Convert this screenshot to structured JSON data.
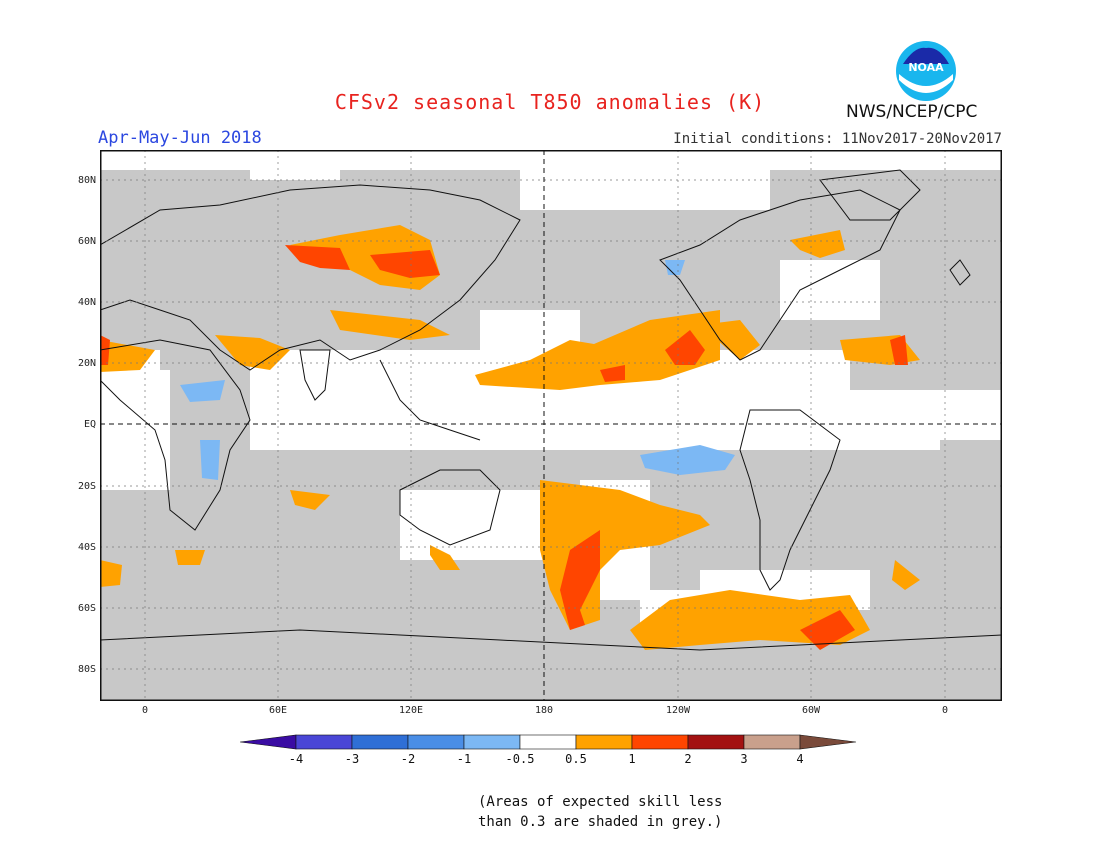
{
  "title": "CFSv2 seasonal T850 anomalies (K)",
  "season": "Apr-May-Jun 2018",
  "initial_conditions": "Initial conditions: 11Nov2017-20Nov2017",
  "agency": "NWS/NCEP/CPC",
  "logo": {
    "text": "NOAA",
    "icon": "noaa-logo-icon"
  },
  "lat_labels": [
    "80N",
    "60N",
    "40N",
    "20N",
    "EQ",
    "20S",
    "40S",
    "60S",
    "80S"
  ],
  "lon_labels": [
    "0",
    "60E",
    "120E",
    "180",
    "120W",
    "60W",
    "0"
  ],
  "colorbar": {
    "labels": [
      "-4",
      "-3",
      "-2",
      "-1",
      "-0.5",
      "0.5",
      "1",
      "2",
      "3",
      "4"
    ],
    "colors": [
      "#3a0ca3",
      "#4a46d6",
      "#2f6fd6",
      "#4a8ee6",
      "#7cb8f4",
      "#ffffff",
      "#ffa200",
      "#ff4500",
      "#a31212",
      "#c9a08c",
      "#7a4a3a"
    ]
  },
  "skill_note": [
    "(Areas of expected skill less",
    "than 0.3 are shaded in grey.)"
  ],
  "colors": {
    "grey": "#c8c8c8",
    "land_outline": "#111111",
    "title": "#e8231f",
    "season": "#2b47e0"
  }
}
